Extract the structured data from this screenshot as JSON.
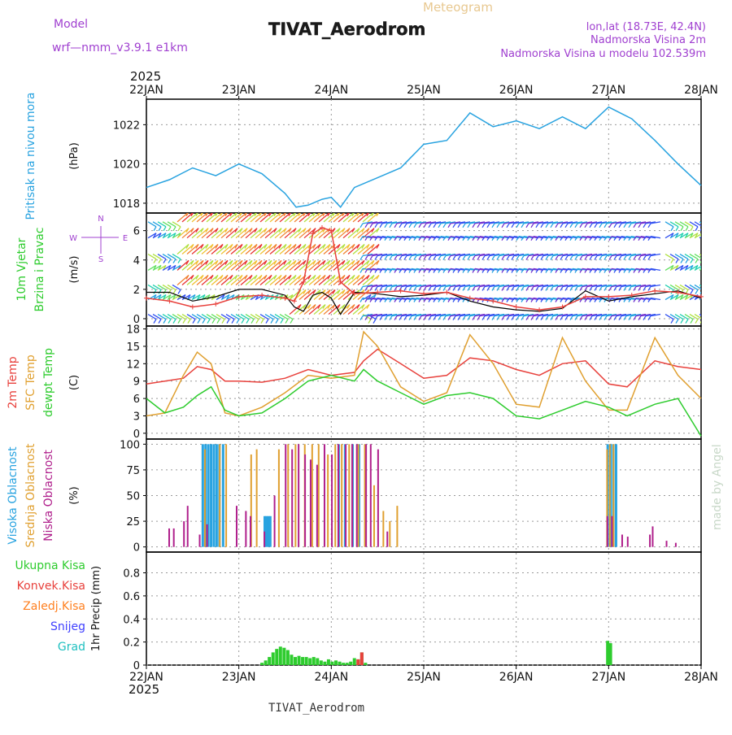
{
  "header": {
    "title": "TIVAT_Aerodrom",
    "meteogram_label": "Meteogram",
    "model_label": "Model",
    "model_name": "wrf—nmm_v3.9.1 e1km",
    "lonlat": "lon,lat (18.73E, 42.4N)",
    "elevation": "Nadmorska Visina 2m",
    "model_elevation": "Nadmorska Visina u modelu 102.539m",
    "footer_title": "TIVAT_Aerodrom",
    "watermark": "made by Angel"
  },
  "colors": {
    "pressure": "#29a3e0",
    "t2m": "#e8413c",
    "sfc": "#e0a030",
    "dewpt": "#2ecc2e",
    "high_cloud": "#29a3e0",
    "mid_cloud": "#e0a030",
    "low_cloud": "#b0208c",
    "total_precip": "#2ecc2e",
    "conv_precip": "#e8413c",
    "frozen_precip": "#ff8020",
    "snow": "#4040ff",
    "hail": "#20c0c0",
    "purple_text": "#a040d0",
    "wind_speed_line": "#000000",
    "wind_gust_marker": "#e8413c"
  },
  "chart_data": {
    "type": "line",
    "x_axis": {
      "year": "2025",
      "ticks": [
        "22JAN",
        "23JAN",
        "24JAN",
        "25JAN",
        "26JAN",
        "27JAN",
        "28JAN"
      ],
      "range_days": [
        0,
        6
      ]
    },
    "panels": [
      {
        "id": "pressure",
        "type": "line",
        "side_labels": [
          "Pritisak na nivou mora"
        ],
        "unit": "(hPa)",
        "yticks": [
          "1018",
          "1020",
          "1022"
        ],
        "ylim": [
          1017.5,
          1023.3
        ],
        "series": [
          {
            "name": "Pritisak na nivou mora",
            "x": [
              0,
              0.25,
              0.5,
              0.75,
              1.0,
              1.25,
              1.5,
              1.62,
              1.75,
              1.9,
              2.0,
              2.1,
              2.25,
              2.5,
              2.75,
              3.0,
              3.25,
              3.5,
              3.75,
              4.0,
              4.25,
              4.5,
              4.75,
              5.0,
              5.25,
              5.5,
              5.75,
              6.0
            ],
            "y": [
              1018.8,
              1019.2,
              1019.8,
              1019.4,
              1020.0,
              1019.5,
              1018.5,
              1017.8,
              1017.9,
              1018.2,
              1018.3,
              1017.8,
              1018.8,
              1019.3,
              1019.8,
              1021.0,
              1021.2,
              1022.6,
              1021.9,
              1022.2,
              1021.8,
              1022.4,
              1021.8,
              1022.9,
              1022.3,
              1021.2,
              1020.0,
              1018.9
            ]
          }
        ]
      },
      {
        "id": "wind",
        "type": "line",
        "side_labels": [
          "10m Vjetar",
          "Brzina i Pravac"
        ],
        "unit": "(m/s)",
        "yticks": [
          "0",
          "2",
          "4",
          "6"
        ],
        "ylim": [
          -0.5,
          7.2
        ],
        "compass": "N W E S",
        "series": [
          {
            "name": "10m Vjetar",
            "x": [
              0,
              0.25,
              0.5,
              0.75,
              1.0,
              1.25,
              1.5,
              1.6,
              1.7,
              1.8,
              1.9,
              2.0,
              2.1,
              2.25,
              2.5,
              2.75,
              3.0,
              3.25,
              3.5,
              3.75,
              4.0,
              4.25,
              4.5,
              4.75,
              5.0,
              5.25,
              5.5,
              5.75,
              6.0
            ],
            "y": [
              1.8,
              1.8,
              1.2,
              1.5,
              2.0,
              2.0,
              1.6,
              0.8,
              0.5,
              1.6,
              1.8,
              1.4,
              0.3,
              1.8,
              1.7,
              1.5,
              1.6,
              1.8,
              1.2,
              0.8,
              0.6,
              0.5,
              0.7,
              1.9,
              1.2,
              1.5,
              1.7,
              1.9,
              1.4
            ]
          },
          {
            "name": "Brzina i Pravac",
            "x": [
              0,
              0.25,
              0.5,
              0.75,
              1.0,
              1.25,
              1.5,
              1.6,
              1.7,
              1.8,
              1.9,
              2.0,
              2.1,
              2.25,
              2.5,
              2.75,
              3.0,
              3.25,
              3.5,
              3.75,
              4.0,
              4.25,
              4.5,
              4.75,
              5.0,
              5.25,
              5.5,
              5.75,
              6.0
            ],
            "y": [
              1.4,
              1.2,
              0.8,
              1.0,
              1.5,
              1.6,
              1.4,
              1.2,
              2.5,
              5.8,
              6.2,
              6.0,
              2.5,
              1.7,
              1.8,
              1.9,
              1.7,
              1.8,
              1.4,
              1.2,
              0.8,
              0.6,
              0.8,
              1.5,
              1.5,
              1.6,
              1.9,
              1.8,
              1.5
            ]
          }
        ]
      },
      {
        "id": "temperature",
        "type": "line",
        "side_labels": [
          "2m Temp",
          "SFC Temp",
          "dewpt Temp"
        ],
        "unit": "(C)",
        "yticks": [
          "0",
          "3",
          "6",
          "9",
          "12",
          "15",
          "18"
        ],
        "ylim": [
          -1,
          18.5
        ],
        "series": [
          {
            "name": "2m Temp",
            "x": [
              0,
              0.2,
              0.4,
              0.55,
              0.7,
              0.85,
              1.0,
              1.25,
              1.5,
              1.75,
              2.0,
              2.25,
              2.35,
              2.5,
              2.75,
              3.0,
              3.25,
              3.5,
              3.75,
              4.0,
              4.25,
              4.5,
              4.75,
              5.0,
              5.2,
              5.5,
              5.75,
              6.0
            ],
            "y": [
              8.5,
              9.0,
              9.5,
              11.5,
              11.0,
              9.0,
              9.0,
              8.8,
              9.5,
              11.0,
              10.0,
              10.5,
              12.5,
              14.5,
              12.0,
              9.5,
              10.0,
              13.0,
              12.5,
              11.0,
              10.0,
              12.0,
              12.5,
              8.5,
              8.0,
              12.5,
              11.5,
              11.0
            ]
          },
          {
            "name": "SFC Temp",
            "x": [
              0,
              0.2,
              0.4,
              0.55,
              0.7,
              0.85,
              1.0,
              1.25,
              1.5,
              1.75,
              2.0,
              2.25,
              2.35,
              2.5,
              2.75,
              3.0,
              3.25,
              3.5,
              3.75,
              4.0,
              4.25,
              4.5,
              4.75,
              5.0,
              5.2,
              5.5,
              5.75,
              6.0
            ],
            "y": [
              3.0,
              3.5,
              10.0,
              14.0,
              12.0,
              3.5,
              3.0,
              4.5,
              7.0,
              10.0,
              9.5,
              10.0,
              17.5,
              15.0,
              8.0,
              5.5,
              7.0,
              17.0,
              12.0,
              5.0,
              4.5,
              16.5,
              9.0,
              4.0,
              4.0,
              16.5,
              10.0,
              6.0
            ]
          },
          {
            "name": "dewpt Temp",
            "x": [
              0,
              0.2,
              0.4,
              0.55,
              0.7,
              0.85,
              1.0,
              1.25,
              1.5,
              1.75,
              2.0,
              2.25,
              2.35,
              2.5,
              2.75,
              3.0,
              3.25,
              3.5,
              3.75,
              4.0,
              4.25,
              4.5,
              4.75,
              5.0,
              5.2,
              5.5,
              5.75,
              6.0
            ],
            "y": [
              6.0,
              3.5,
              4.5,
              6.5,
              8.0,
              4.0,
              3.0,
              3.5,
              6.0,
              9.0,
              10.0,
              9.0,
              11.0,
              9.0,
              7.0,
              5.0,
              6.5,
              7.0,
              6.0,
              3.0,
              2.5,
              4.0,
              5.5,
              4.5,
              3.0,
              5.0,
              6.0,
              -0.5
            ]
          }
        ]
      },
      {
        "id": "clouds",
        "type": "bar",
        "side_labels": [
          "Visoka Oblacnost",
          "Srednja Oblacnost",
          "Niska Oblacnost"
        ],
        "unit": "(%)",
        "yticks": [
          "0",
          "25",
          "50",
          "75",
          "100"
        ],
        "ylim": [
          -5,
          105
        ],
        "series": [
          {
            "name": "Visoka Oblacnost",
            "x": [
              0.61,
              0.64,
              0.67,
              0.7,
              0.73,
              0.76,
              0.79,
              0.83,
              1.28,
              1.3,
              1.32,
              1.34,
              2.08,
              2.15,
              2.23,
              2.3,
              2.37,
              4.99,
              5.02,
              5.05,
              5.08
            ],
            "y": [
              100,
              100,
              100,
              100,
              100,
              100,
              100,
              100,
              30,
              30,
              30,
              30,
              100,
              100,
              100,
              100,
              100,
              100,
              100,
              100,
              100
            ]
          },
          {
            "name": "Srednja Oblacnost",
            "x": [
              0.62,
              0.78,
              0.85,
              1.12,
              1.18,
              1.42,
              1.52,
              1.6,
              1.7,
              1.78,
              1.85,
              1.95,
              2.03,
              2.1,
              2.18,
              2.28,
              2.35,
              2.45,
              2.55,
              2.62,
              2.7,
              4.97,
              5.0,
              5.04
            ],
            "y": [
              95,
              100,
              100,
              90,
              95,
              95,
              100,
              100,
              100,
              100,
              100,
              90,
              100,
              100,
              100,
              100,
              100,
              60,
              35,
              25,
              40,
              95,
              100,
              100
            ]
          },
          {
            "name": "Niska Oblacnost",
            "x": [
              0.22,
              0.27,
              0.38,
              0.42,
              0.55,
              0.63,
              0.95,
              1.05,
              1.1,
              1.25,
              1.36,
              1.48,
              1.55,
              1.62,
              1.69,
              1.75,
              1.82,
              1.9,
              1.98,
              2.05,
              2.13,
              2.2,
              2.25,
              2.35,
              2.4,
              2.48,
              2.58,
              4.96,
              5.01,
              5.12,
              5.18,
              5.42,
              5.45,
              5.6,
              5.7
            ],
            "y": [
              18,
              18,
              25,
              40,
              12,
              22,
              40,
              35,
              30,
              15,
              50,
              100,
              95,
              100,
              90,
              85,
              80,
              100,
              90,
              100,
              100,
              100,
              100,
              100,
              100,
              95,
              15,
              30,
              30,
              12,
              10,
              12,
              20,
              6,
              4
            ]
          }
        ]
      },
      {
        "id": "precip",
        "type": "bar",
        "side_labels": [
          "Ukupna Kisa",
          "Konvek.Kisa",
          "Zaledj.Kisa",
          "Snijeg",
          "Grad"
        ],
        "unit": "1hr Precip (mm)",
        "yticks": [
          "0",
          "0.2",
          "0.4",
          "0.6",
          "0.8"
        ],
        "ylim": [
          0,
          0.98
        ],
        "series": [
          {
            "name": "Ukupna Kisa",
            "x": [
              1.25,
              1.29,
              1.33,
              1.37,
              1.41,
              1.45,
              1.49,
              1.53,
              1.57,
              1.61,
              1.65,
              1.69,
              1.73,
              1.77,
              1.81,
              1.85,
              1.89,
              1.93,
              1.97,
              2.01,
              2.05,
              2.09,
              2.13,
              2.17,
              2.21,
              2.25,
              2.29,
              2.33,
              2.37,
              4.99,
              5.02
            ],
            "y": [
              0.02,
              0.04,
              0.07,
              0.11,
              0.14,
              0.16,
              0.15,
              0.13,
              0.09,
              0.07,
              0.08,
              0.07,
              0.07,
              0.06,
              0.07,
              0.06,
              0.04,
              0.03,
              0.05,
              0.03,
              0.04,
              0.03,
              0.02,
              0.02,
              0.03,
              0.06,
              0.05,
              0.11,
              0.02,
              0.21,
              0.19
            ]
          },
          {
            "name": "Konvek.Kisa",
            "x": [
              2.29,
              2.33
            ],
            "y": [
              0.05,
              0.11
            ]
          }
        ]
      }
    ]
  }
}
